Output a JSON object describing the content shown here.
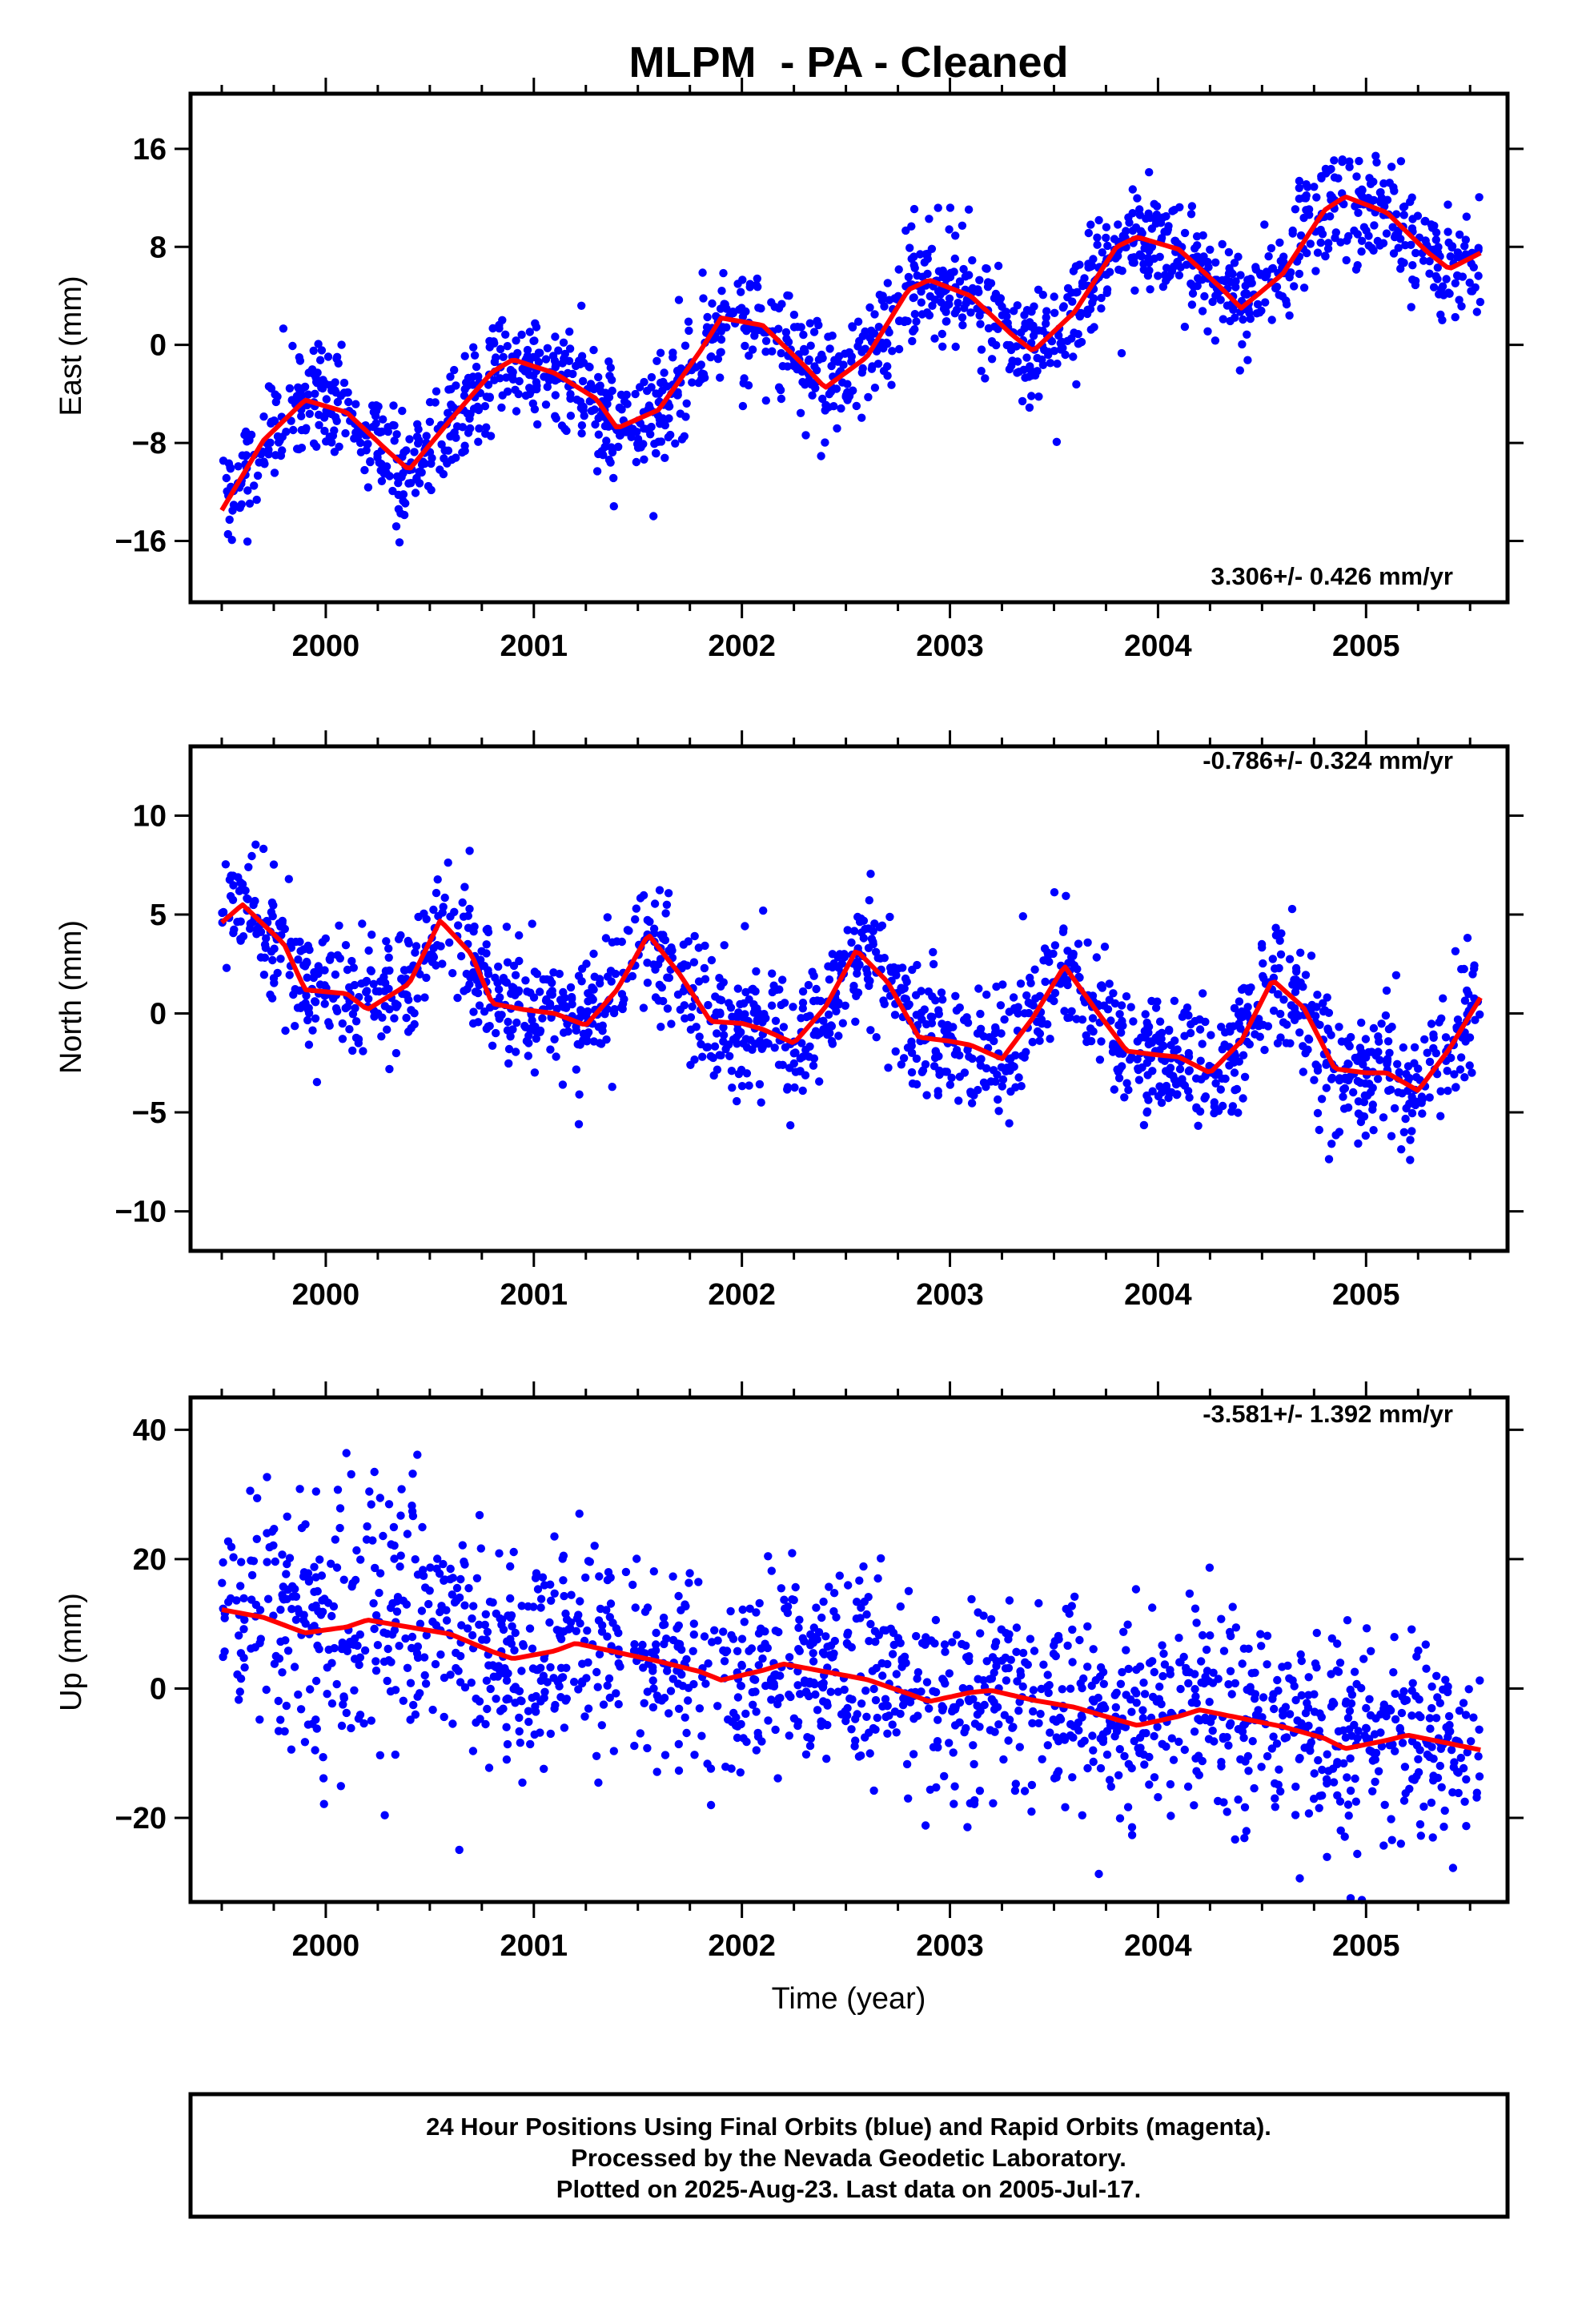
{
  "chart_data": {
    "type": "scatter",
    "title": "MLPM  - PA - Cleaned",
    "xlabel": "Time (year)",
    "xlim": [
      1999.35,
      2005.68
    ],
    "xticks": [
      2000,
      2001,
      2002,
      2003,
      2004,
      2005
    ],
    "xtick_labels": [
      "2000",
      "2001",
      "2002",
      "2003",
      "2004",
      "2005"
    ],
    "colors": {
      "points": "#0000ff",
      "fit": "#ff0000",
      "frame": "#000000"
    },
    "panels": [
      {
        "ylabel": "East (mm)",
        "ylim": [
          -21,
          20.5
        ],
        "yticks": [
          -16,
          -8,
          0,
          8,
          16
        ],
        "ytick_labels": [
          "−16",
          "−8",
          "0",
          "8",
          "16"
        ],
        "rate": "3.306+/- 0.426 mm/yr",
        "rate_position": "bottom-right",
        "fit": {
          "x": [
            1999.5,
            1999.7,
            1999.9,
            2000.1,
            2000.3,
            2000.4,
            2000.6,
            2000.8,
            2000.9,
            2001.1,
            2001.3,
            2001.4,
            2001.6,
            2001.8,
            2001.9,
            2002.1,
            2002.3,
            2002.4,
            2002.6,
            2002.8,
            2002.9,
            2003.1,
            2003.3,
            2003.4,
            2003.6,
            2003.8,
            2003.9,
            2004.1,
            2004.3,
            2004.4,
            2004.6,
            2004.8,
            2004.9,
            2005.1,
            2005.3,
            2005.4,
            2005.55
          ],
          "y": [
            -13.5,
            -7.8,
            -4.5,
            -5.5,
            -8.7,
            -10.2,
            -6.1,
            -2.2,
            -1.2,
            -2.3,
            -4.4,
            -6.8,
            -5.3,
            -0.5,
            2.2,
            1.6,
            -1.7,
            -3.5,
            -1.0,
            4.5,
            5.3,
            4.0,
            0.8,
            -0.5,
            2.7,
            8.0,
            8.8,
            7.8,
            4.7,
            3.0,
            5.8,
            11.0,
            12.1,
            10.8,
            7.5,
            6.2,
            7.5
          ]
        },
        "points": {
          "n": 1600,
          "trend": 3.306,
          "amp": 3.4,
          "scatter": 2.2,
          "offset": -8.6
        }
      },
      {
        "ylabel": "North (mm)",
        "ylim": [
          -12,
          13.5
        ],
        "yticks": [
          -10,
          -5,
          0,
          5,
          10
        ],
        "ytick_labels": [
          "−10",
          "−5",
          "0",
          "5",
          "10"
        ],
        "rate": "-0.786+/- 0.324 mm/yr",
        "rate_position": "top-right",
        "fit": {
          "x": [
            1999.5,
            1999.6,
            1999.8,
            1999.9,
            2000.1,
            2000.2,
            2000.4,
            2000.55,
            2000.7,
            2000.8,
            2000.95,
            2001.1,
            2001.25,
            2001.4,
            2001.55,
            2001.7,
            2001.85,
            2002.0,
            2002.1,
            2002.25,
            2002.4,
            2002.55,
            2002.7,
            2002.85,
            2003.0,
            2003.1,
            2003.25,
            2003.4,
            2003.55,
            2003.7,
            2003.85,
            2004.0,
            2004.1,
            2004.25,
            2004.4,
            2004.55,
            2004.7,
            2004.85,
            2005.0,
            2005.1,
            2005.25,
            2005.4,
            2005.55
          ],
          "y": [
            4.6,
            5.5,
            3.5,
            1.2,
            1.0,
            0.2,
            1.5,
            4.7,
            3.0,
            0.5,
            0.2,
            0.0,
            -0.6,
            1.2,
            4.0,
            2.0,
            -0.4,
            -0.5,
            -0.8,
            -1.5,
            0.3,
            3.2,
            1.6,
            -1.2,
            -1.4,
            -1.6,
            -2.3,
            -0.2,
            2.4,
            0.2,
            -1.9,
            -2.1,
            -2.2,
            -3.0,
            -1.4,
            1.7,
            0.3,
            -2.8,
            -3.0,
            -3.0,
            -3.9,
            -1.8,
            0.8
          ]
        },
        "points": {
          "n": 1600,
          "trend": -0.786,
          "amp": 2.4,
          "scatter": 1.6,
          "offset": 2.6
        }
      },
      {
        "ylabel": "Up (mm)",
        "ylim": [
          -33,
          45
        ],
        "yticks": [
          -20,
          0,
          20,
          40
        ],
        "ytick_labels": [
          "−20",
          "0",
          "20",
          "40"
        ],
        "rate": "-3.581+/- 1.392 mm/yr",
        "rate_position": "top-right",
        "fit": {
          "x": [
            1999.5,
            1999.7,
            1999.9,
            2000.1,
            2000.2,
            2000.4,
            2000.6,
            2000.8,
            2000.9,
            2001.1,
            2001.2,
            2001.4,
            2001.6,
            2001.8,
            2001.9,
            2002.1,
            2002.2,
            2002.4,
            2002.6,
            2002.8,
            2002.9,
            2003.1,
            2003.2,
            2003.4,
            2003.6,
            2003.8,
            2003.9,
            2004.1,
            2004.2,
            2004.4,
            2004.6,
            2004.8,
            2004.9,
            2005.1,
            2005.2,
            2005.4,
            2005.55
          ],
          "y": [
            12.2,
            11.0,
            8.6,
            9.5,
            10.6,
            9.5,
            8.4,
            5.7,
            4.6,
            5.8,
            7.0,
            5.6,
            4.2,
            2.6,
            1.3,
            2.8,
            3.8,
            2.6,
            1.4,
            -0.8,
            -2.0,
            -0.6,
            -0.3,
            -1.8,
            -2.9,
            -4.8,
            -5.7,
            -4.3,
            -3.3,
            -4.6,
            -5.9,
            -7.7,
            -9.3,
            -8.0,
            -7.2,
            -8.5,
            -9.5
          ]
        },
        "points": {
          "n": 1600,
          "trend": -3.581,
          "amp": 0,
          "scatter": 7.5,
          "offset": 13.0
        }
      }
    ]
  },
  "footer": {
    "line1": "24 Hour Positions Using Final Orbits (blue) and Rapid Orbits (magenta).",
    "line2": "Processed by the Nevada Geodetic Laboratory.",
    "line3": "Plotted on 2025-Aug-23. Last data on 2005-Jul-17."
  }
}
